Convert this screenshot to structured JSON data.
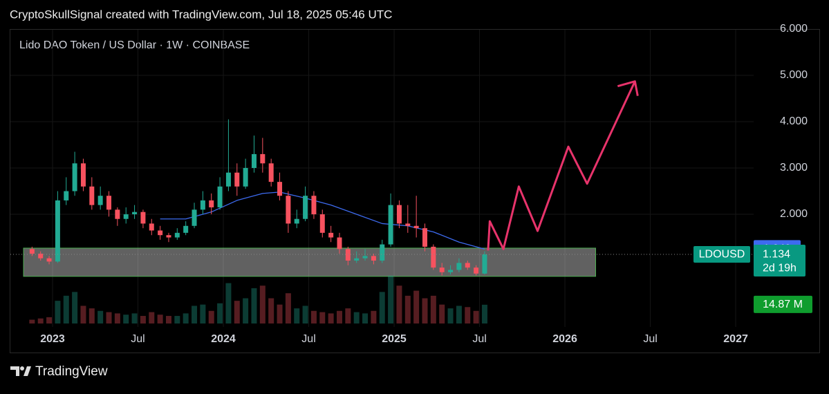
{
  "header": "CryptoSkullSignal created with TradingView.com, Jul 18, 2025 05:46 UTC",
  "footer": "TradingView",
  "chart_data": {
    "type": "candlestick",
    "title": "Lido DAO Token / US Dollar · 1W · COINBASE",
    "xlim": [
      2022.749,
      2027.105
    ],
    "xticks": [
      2023,
      {
        "value": 2023.5,
        "label": "Jul"
      },
      2024,
      {
        "value": 2024.5,
        "label": "Jul"
      },
      2025,
      {
        "value": 2025.5,
        "label": "Jul"
      },
      2026,
      {
        "value": 2026.5,
        "label": "Jul"
      },
      2027
    ],
    "ylim": [
      -0.48,
      6.2
    ],
    "yticks": [
      {
        "value": 2,
        "label": "2.000"
      },
      {
        "value": 3,
        "label": "3.000"
      },
      {
        "value": 4,
        "label": "4.000"
      },
      {
        "value": 5,
        "label": "5.000"
      },
      {
        "value": 6,
        "label": "6.000"
      }
    ],
    "up_color": "#22ab94",
    "down_color": "#f7525f",
    "candles": {
      "x": [
        2022.88,
        2022.93,
        2022.98,
        2023.03,
        2023.08,
        2023.13,
        2023.18,
        2023.23,
        2023.28,
        2023.33,
        2023.38,
        2023.43,
        2023.48,
        2023.53,
        2023.58,
        2023.63,
        2023.68,
        2023.73,
        2023.78,
        2023.83,
        2023.88,
        2023.93,
        2023.98,
        2024.03,
        2024.08,
        2024.13,
        2024.18,
        2024.23,
        2024.28,
        2024.33,
        2024.38,
        2024.43,
        2024.48,
        2024.53,
        2024.58,
        2024.63,
        2024.68,
        2024.73,
        2024.78,
        2024.83,
        2024.88,
        2024.93,
        2024.98,
        2025.03,
        2025.08,
        2025.13,
        2025.18,
        2025.23,
        2025.28,
        2025.33,
        2025.38,
        2025.43,
        2025.48,
        2025.53
      ],
      "open": [
        1.25,
        1.15,
        1.05,
        0.98,
        2.3,
        2.5,
        3.1,
        2.6,
        2.2,
        2.4,
        2.1,
        1.9,
        2.0,
        2.05,
        1.8,
        1.65,
        1.55,
        1.5,
        1.6,
        1.75,
        2.1,
        2.3,
        2.15,
        2.6,
        2.9,
        2.6,
        3.0,
        3.3,
        3.1,
        2.7,
        2.4,
        1.8,
        1.9,
        2.4,
        2.0,
        1.6,
        1.5,
        1.25,
        1.0,
        1.05,
        1.1,
        1.0,
        1.35,
        2.2,
        1.8,
        1.75,
        1.7,
        1.3,
        0.85,
        0.75,
        0.8,
        0.95,
        0.85,
        0.72
      ],
      "high": [
        1.3,
        1.2,
        1.1,
        2.5,
        2.8,
        3.35,
        3.2,
        2.8,
        2.6,
        2.5,
        2.15,
        2.15,
        2.2,
        2.1,
        1.9,
        1.75,
        1.6,
        1.7,
        1.85,
        2.25,
        2.5,
        2.45,
        2.8,
        4.05,
        3.1,
        3.2,
        3.7,
        3.65,
        3.2,
        2.9,
        2.5,
        2.1,
        2.6,
        2.5,
        2.1,
        1.75,
        1.6,
        1.3,
        1.2,
        1.25,
        1.15,
        1.45,
        2.45,
        2.3,
        2.2,
        2.4,
        1.8,
        1.35,
        0.95,
        0.9,
        1.05,
        1.0,
        0.9,
        1.2
      ],
      "low": [
        1.1,
        1.0,
        0.92,
        0.95,
        2.2,
        2.4,
        2.5,
        2.1,
        2.1,
        1.95,
        1.75,
        1.8,
        1.9,
        1.7,
        1.55,
        1.45,
        1.4,
        1.45,
        1.55,
        1.7,
        2.0,
        2.0,
        2.1,
        2.5,
        2.4,
        2.55,
        2.9,
        2.9,
        2.6,
        2.3,
        1.6,
        1.7,
        1.85,
        1.9,
        1.5,
        1.4,
        1.15,
        0.9,
        0.95,
        1.0,
        0.92,
        0.95,
        1.3,
        1.7,
        1.6,
        1.5,
        1.2,
        0.8,
        0.68,
        0.7,
        0.75,
        0.8,
        0.68,
        0.7
      ],
      "close": [
        1.15,
        1.05,
        0.98,
        2.3,
        2.5,
        3.1,
        2.6,
        2.2,
        2.4,
        2.1,
        1.9,
        2.0,
        2.05,
        1.8,
        1.65,
        1.55,
        1.5,
        1.6,
        1.75,
        2.1,
        2.3,
        2.15,
        2.6,
        2.9,
        2.6,
        3.0,
        3.3,
        3.1,
        2.7,
        2.4,
        1.8,
        1.9,
        2.4,
        2.0,
        1.6,
        1.5,
        1.25,
        1.0,
        1.05,
        1.1,
        1.0,
        1.35,
        2.2,
        1.8,
        1.75,
        1.7,
        1.3,
        0.85,
        0.75,
        0.8,
        0.95,
        0.85,
        0.72,
        1.134
      ]
    },
    "volume": {
      "vlim": [
        0,
        80
      ],
      "values": [
        3,
        4,
        5,
        18,
        22,
        25,
        14,
        12,
        10,
        9,
        8,
        7,
        8,
        6,
        9,
        7,
        6,
        6,
        8,
        14,
        15,
        10,
        16,
        32,
        18,
        20,
        28,
        30,
        20,
        15,
        24,
        12,
        14,
        10,
        9,
        8,
        10,
        12,
        9,
        8,
        10,
        25,
        38,
        30,
        22,
        26,
        20,
        22,
        15,
        12,
        14,
        13,
        10,
        14.87
      ],
      "last_label": "14.87 M",
      "tag_color": "#0f9d2e"
    },
    "ma": {
      "color": "#3d6bf0",
      "x": [
        2023.63,
        2023.78,
        2023.93,
        2024.08,
        2024.23,
        2024.33,
        2024.48,
        2024.63,
        2024.78,
        2024.93,
        2025.08,
        2025.23,
        2025.38,
        2025.53
      ],
      "values": [
        1.9,
        1.9,
        2.05,
        2.3,
        2.45,
        2.48,
        2.35,
        2.2,
        2.0,
        1.8,
        1.75,
        1.62,
        1.4,
        1.249
      ]
    },
    "forecast": {
      "color": "#e8336b",
      "x": [
        2025.55,
        2025.56,
        2025.64,
        2025.73,
        2025.84,
        2026.02,
        2026.13,
        2026.41
      ],
      "values": [
        1.22,
        1.85,
        1.25,
        2.6,
        1.64,
        3.46,
        2.66,
        4.87
      ]
    },
    "zone": {
      "x": [
        2022.83,
        2026.18
      ],
      "y": [
        0.66,
        1.27
      ],
      "color": "#4caf50"
    },
    "symbol_tag": "LDOUSD",
    "countdown": "2d 19h",
    "tag_color": "#089981"
  }
}
